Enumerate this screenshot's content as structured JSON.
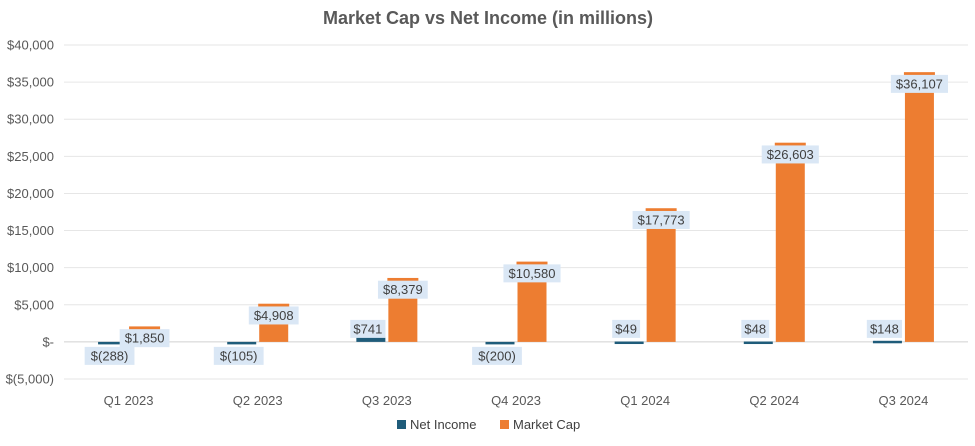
{
  "chart_data": {
    "type": "bar",
    "title": "Market Cap vs Net Income (in millions)",
    "xlabel": "",
    "ylabel": "",
    "ylim": [
      -5000,
      40000
    ],
    "ytick_values": [
      -5000,
      0,
      5000,
      10000,
      15000,
      20000,
      25000,
      30000,
      35000,
      40000
    ],
    "ytick_labels": [
      "$(5,000)",
      "$-",
      "$5,000",
      "$10,000",
      "$15,000",
      "$20,000",
      "$25,000",
      "$30,000",
      "$35,000",
      "$40,000"
    ],
    "grid": true,
    "legend_position": "bottom",
    "categories": [
      "Q1 2023",
      "Q2 2023",
      "Q3 2023",
      "Q4 2023",
      "Q1 2024",
      "Q2 2024",
      "Q3 2024"
    ],
    "series": [
      {
        "name": "Net Income",
        "color": "#1F5C7A",
        "values": [
          -288,
          -105,
          741,
          -200,
          49,
          48,
          148
        ],
        "labels": [
          "$(288)",
          "$(105)",
          "$741",
          "$(200)",
          "$49",
          "$48",
          "$148"
        ]
      },
      {
        "name": "Market Cap",
        "color": "#ED7D31",
        "values": [
          1850,
          4908,
          8379,
          10580,
          17773,
          26603,
          36107
        ],
        "labels": [
          "$1,850",
          "$4,908",
          "$8,379",
          "$10,580",
          "$17,773",
          "$26,603",
          "$36,107"
        ]
      }
    ]
  }
}
